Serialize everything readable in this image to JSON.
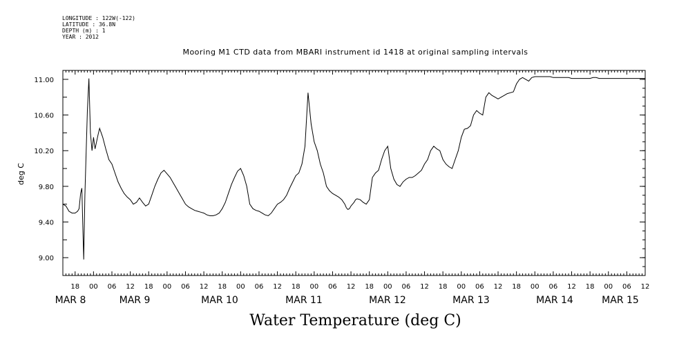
{
  "meta": {
    "longitude": "LONGITUDE : 122W(-122)",
    "latitude": "LATITUDE : 36.8N",
    "depth": "DEPTH (m) : 1",
    "year": "YEAR : 2012"
  },
  "chart_data": {
    "type": "line",
    "title": "Mooring M1 CTD data from MBARI instrument id 1418 at original sampling intervals",
    "bottom_label": "Water Temperature (deg C)",
    "ylabel": "deg C",
    "xlabel": "",
    "ylim": [
      8.8,
      11.1
    ],
    "yticks": [
      "9.00",
      "9.40",
      "9.80",
      "10.20",
      "10.60",
      "11.00"
    ],
    "xlim": [
      "2012-03-07T14:00",
      "2012-03-15T12:00"
    ],
    "hour_ticks": [
      "18",
      "00",
      "06",
      "12",
      "18",
      "00",
      "06",
      "12",
      "18",
      "00",
      "06",
      "12",
      "18",
      "00",
      "06",
      "12",
      "18",
      "00",
      "06",
      "12",
      "18",
      "00",
      "06",
      "12",
      "18",
      "00",
      "06",
      "12",
      "18",
      "00",
      "06",
      "12"
    ],
    "day_labels": [
      "MAR  8",
      "MAR  9",
      "MAR 10",
      "MAR 11",
      "MAR 12",
      "MAR 13",
      "MAR 14",
      "MAR 15"
    ],
    "grid": false,
    "series": [
      {
        "color": "#000000",
        "x_hours_from_start": [
          0,
          1,
          2,
          3,
          4,
          4.8,
          5.3,
          5.8,
          6.2,
          6.5,
          6.8,
          7.2,
          7.6,
          8,
          8.5,
          9,
          9.5,
          10,
          10.5,
          11,
          11.5,
          12,
          13,
          14,
          15,
          16,
          17,
          18,
          19,
          20,
          21,
          22,
          23,
          24,
          25,
          26,
          27,
          28,
          29,
          30,
          31,
          32,
          33,
          34,
          35,
          36,
          37,
          38,
          39,
          40,
          41,
          42,
          43,
          44,
          45,
          46,
          47,
          48,
          49,
          50,
          51,
          52,
          53,
          54,
          55,
          56,
          57,
          58,
          59,
          60,
          61,
          62,
          63,
          64,
          65,
          66,
          67,
          68,
          69,
          70,
          71,
          72,
          73,
          74,
          75,
          76,
          77,
          78,
          79,
          80,
          81,
          82,
          83,
          84,
          85,
          86,
          87,
          88,
          89,
          90,
          91,
          92,
          92.5,
          93,
          93.5,
          94,
          94.5,
          95,
          95.5,
          96,
          97,
          98,
          99,
          100,
          101,
          102,
          103,
          104,
          105,
          106,
          107,
          108,
          109,
          110,
          111,
          112,
          113,
          114,
          115,
          116,
          117,
          118,
          119,
          120,
          121,
          122,
          123,
          124,
          125,
          126,
          127,
          128,
          129,
          130,
          131,
          132,
          133,
          134,
          135,
          136,
          137,
          138,
          139,
          140,
          141,
          142,
          143,
          144,
          145,
          146,
          147,
          148,
          149,
          150,
          151,
          152,
          153,
          154,
          155,
          156,
          157,
          158,
          159,
          160,
          161,
          162,
          163,
          164,
          165,
          166,
          167,
          168,
          169,
          170,
          171,
          172,
          173,
          174,
          175,
          176,
          177,
          178,
          179,
          180,
          181,
          182,
          183,
          184,
          185,
          186,
          187,
          188,
          189,
          190
        ],
        "values": [
          9.6,
          9.58,
          9.52,
          9.5,
          9.5,
          9.52,
          9.55,
          9.72,
          9.78,
          9.38,
          8.98,
          9.7,
          10.18,
          10.65,
          11.01,
          10.4,
          10.2,
          10.35,
          10.22,
          10.3,
          10.38,
          10.45,
          10.35,
          10.22,
          10.1,
          10.05,
          9.95,
          9.85,
          9.78,
          9.72,
          9.68,
          9.65,
          9.6,
          9.62,
          9.67,
          9.62,
          9.58,
          9.6,
          9.7,
          9.8,
          9.88,
          9.95,
          9.98,
          9.94,
          9.9,
          9.84,
          9.78,
          9.72,
          9.66,
          9.6,
          9.57,
          9.55,
          9.53,
          9.52,
          9.51,
          9.5,
          9.48,
          9.47,
          9.47,
          9.48,
          9.5,
          9.55,
          9.62,
          9.72,
          9.82,
          9.9,
          9.97,
          10.0,
          9.92,
          9.8,
          9.6,
          9.55,
          9.53,
          9.52,
          9.5,
          9.48,
          9.47,
          9.5,
          9.55,
          9.6,
          9.62,
          9.65,
          9.7,
          9.78,
          9.85,
          9.92,
          9.95,
          10.05,
          10.25,
          10.85,
          10.5,
          10.3,
          10.2,
          10.05,
          9.95,
          9.8,
          9.75,
          9.72,
          9.7,
          9.68,
          9.65,
          9.6,
          9.56,
          9.54,
          9.55,
          9.58,
          9.6,
          9.62,
          9.65,
          9.66,
          9.65,
          9.62,
          9.6,
          9.65,
          9.9,
          9.95,
          9.98,
          10.1,
          10.2,
          10.25,
          10.0,
          9.88,
          9.82,
          9.8,
          9.85,
          9.88,
          9.9,
          9.9,
          9.92,
          9.95,
          9.98,
          10.05,
          10.1,
          10.2,
          10.25,
          10.22,
          10.2,
          10.1,
          10.05,
          10.02,
          10.0,
          10.1,
          10.2,
          10.35,
          10.44,
          10.45,
          10.48,
          10.6,
          10.65,
          10.62,
          10.6,
          10.8,
          10.85,
          10.82,
          10.8,
          10.78,
          10.8,
          10.82,
          10.84,
          10.85,
          10.86,
          10.95,
          11.0,
          11.02,
          11.0,
          10.98,
          11.02,
          11.03,
          11.03,
          11.03,
          11.03,
          11.03,
          11.03,
          11.02,
          11.02,
          11.02,
          11.02,
          11.02,
          11.02,
          11.01,
          11.01,
          11.01,
          11.01,
          11.01,
          11.01,
          11.01,
          11.02,
          11.02,
          11.01,
          11.01,
          11.01,
          11.01,
          11.01,
          11.01,
          11.01,
          11.01,
          11.01,
          11.01,
          11.01,
          11.01,
          11.01,
          11.01,
          11.01,
          11.01
        ]
      }
    ]
  }
}
